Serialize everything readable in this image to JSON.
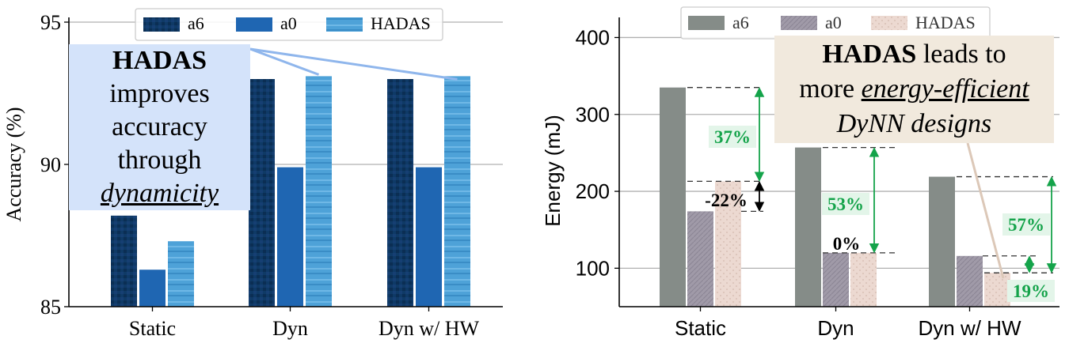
{
  "chart_data": [
    {
      "type": "bar",
      "categories": [
        "Static",
        "Dyn",
        "Dyn w/ HW"
      ],
      "series": [
        {
          "name": "a6",
          "values": [
            88.2,
            93.0,
            93.0
          ],
          "color": "#0f3a66"
        },
        {
          "name": "a0",
          "values": [
            86.3,
            89.9,
            89.9
          ],
          "color": "#1f66b2"
        },
        {
          "name": "HADAS",
          "values": [
            87.3,
            93.1,
            93.1
          ],
          "color": "#4ea2d8"
        }
      ],
      "ylabel": "Accuracy (%)",
      "ylim": [
        85,
        95
      ],
      "yticks": [
        85,
        90,
        95
      ],
      "grid": true,
      "legend": "top",
      "annotation": {
        "parts": [
          "HADAS",
          "improves",
          "accuracy",
          "through",
          "dynamicity"
        ]
      }
    },
    {
      "type": "bar",
      "categories": [
        "Static",
        "Dyn",
        "Dyn w/ HW"
      ],
      "series": [
        {
          "name": "a6",
          "values": [
            335,
            257,
            219
          ],
          "color": "#858c88"
        },
        {
          "name": "a0",
          "values": [
            174,
            120,
            116
          ],
          "color": "#a09aa8"
        },
        {
          "name": "HADAS",
          "values": [
            213,
            120,
            94
          ],
          "color": "#ecd9d1"
        }
      ],
      "ylabel": "Energy (mJ)",
      "ylim": [
        50,
        420
      ],
      "yticks": [
        100,
        200,
        300,
        400
      ],
      "grid": true,
      "legend": "top",
      "percent_labels": [
        "37%",
        "-22%",
        "53%",
        "0%",
        "57%",
        "19%"
      ],
      "annotation": {
        "parts": [
          "HADAS",
          "leads to",
          "more",
          "energy-efficient",
          "DyNN designs"
        ]
      }
    }
  ]
}
